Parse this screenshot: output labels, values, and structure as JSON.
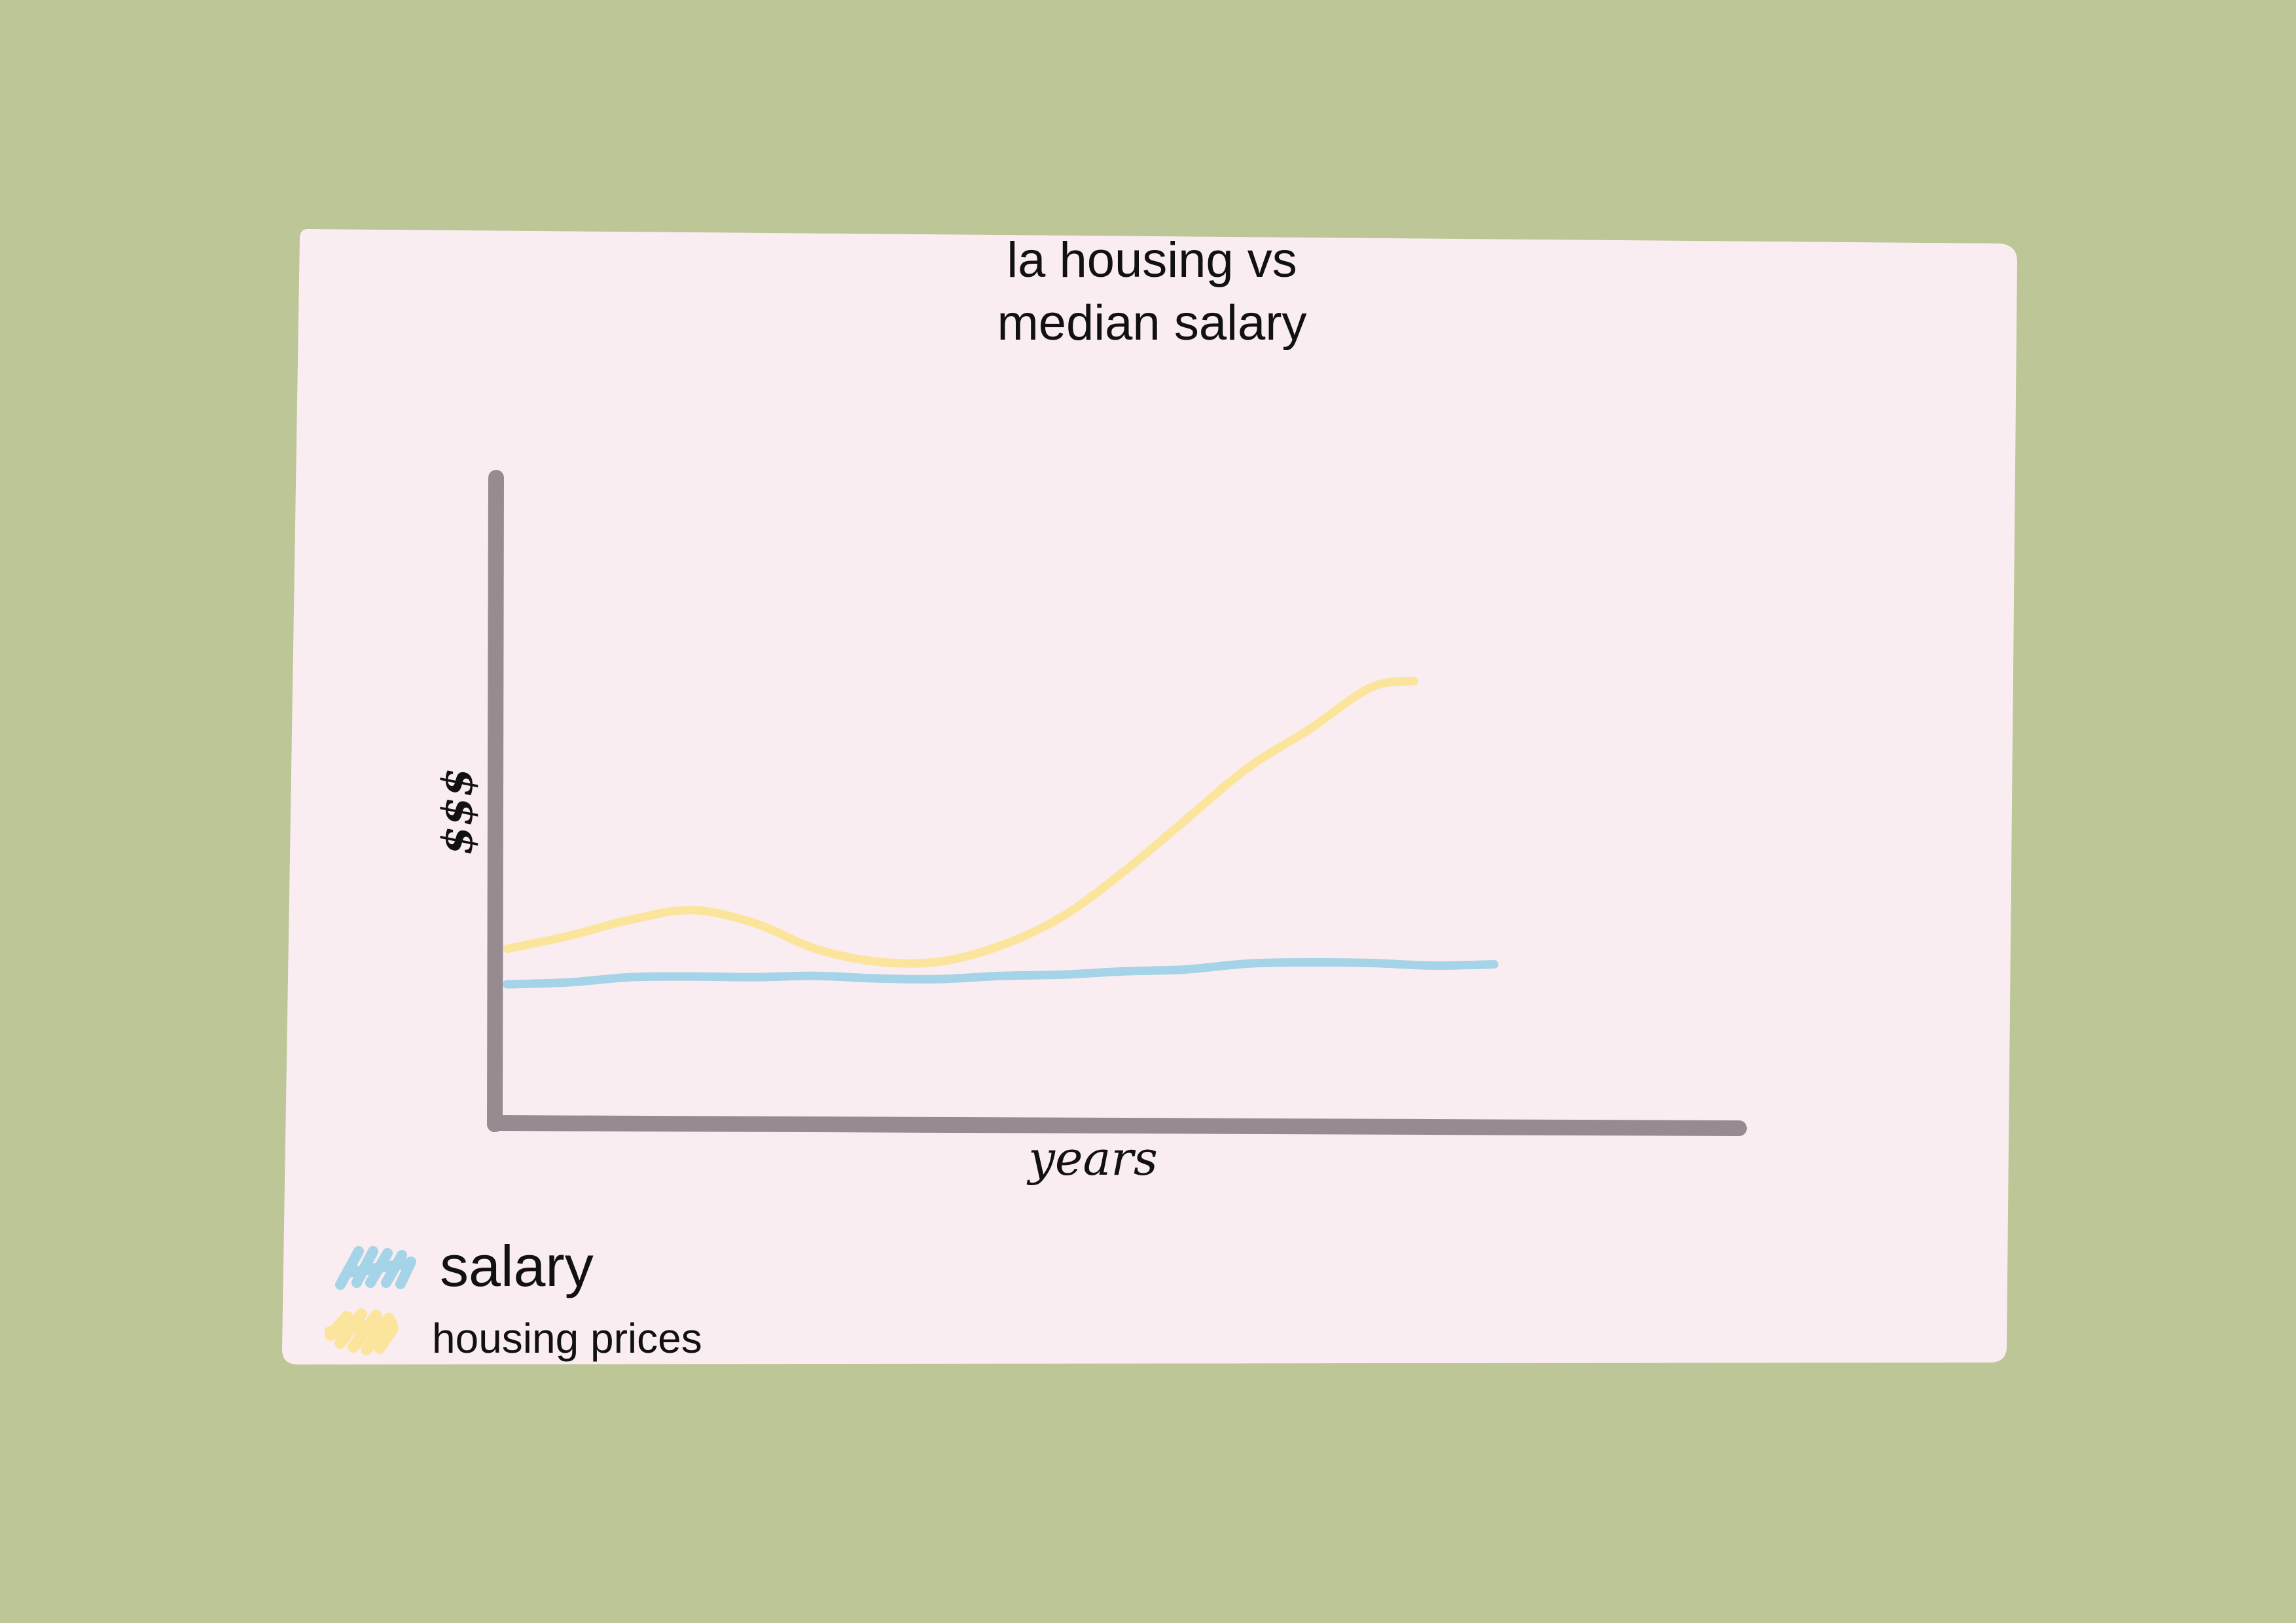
{
  "colors": {
    "background": "#bcc697",
    "card": "#faedf1",
    "axis": "#968b90",
    "salary": "#a5d3e8",
    "housing": "#fbe59d"
  },
  "chart_data": {
    "type": "line",
    "title_lines": [
      "la housing vs",
      "median salary"
    ],
    "xlabel": "years",
    "ylabel": "$$$",
    "x": [
      0,
      0.05,
      0.1,
      0.15,
      0.2,
      0.25,
      0.3,
      0.35,
      0.4,
      0.45,
      0.5,
      0.55,
      0.6,
      0.65,
      0.7,
      0.75,
      0.8,
      0.85,
      0.9,
      0.95,
      1.0
    ],
    "ylim": [
      0,
      100
    ],
    "grid": false,
    "legend_position": "bottom-left",
    "series": [
      {
        "name": "salary",
        "color": "#a5d3e8",
        "values": [
          21.5,
          21.8,
          22.6,
          22.7,
          22.6,
          22.8,
          22.4,
          22.3,
          22.8,
          23.0,
          23.5,
          23.8,
          24.7,
          24.9,
          24.8,
          24.4,
          24.6,
          null,
          null,
          null,
          null
        ]
      },
      {
        "name": "housing prices",
        "color": "#fbe59d",
        "values": [
          27.0,
          29.0,
          31.5,
          33.0,
          31.0,
          27.0,
          25.0,
          25.0,
          27.5,
          32.0,
          39.0,
          47.0,
          55.0,
          61.0,
          67.5,
          68.5,
          null,
          null,
          null,
          null,
          null
        ],
        "x": [
          0,
          0.05,
          0.1,
          0.15,
          0.2,
          0.25,
          0.3,
          0.35,
          0.4,
          0.45,
          0.5,
          0.55,
          0.6,
          0.65,
          0.7,
          0.735,
          null,
          null,
          null,
          null,
          null
        ]
      }
    ]
  }
}
